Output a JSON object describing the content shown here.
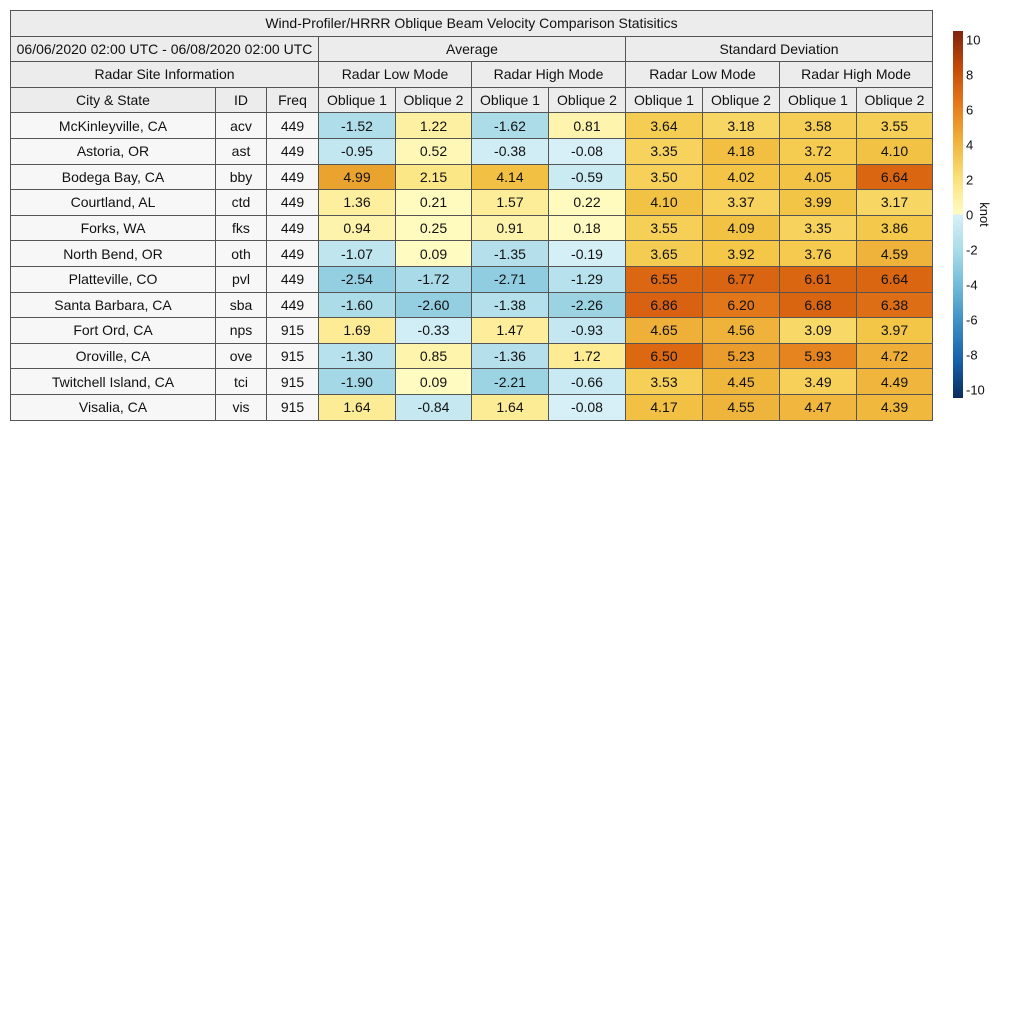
{
  "title": "Wind-Profiler/HRRR Oblique Beam Velocity Comparison Statisitics",
  "date_range": "06/06/2020 02:00 UTC - 06/08/2020 02:00 UTC",
  "groups": {
    "average": "Average",
    "stddev": "Standard Deviation",
    "site_info": "Radar Site Information"
  },
  "modes": [
    "Radar Low Mode",
    "Radar High Mode",
    "Radar Low Mode",
    "Radar High Mode"
  ],
  "columns": {
    "city": "City & State",
    "id": "ID",
    "freq": "Freq",
    "beams": [
      "Oblique 1",
      "Oblique 2",
      "Oblique 1",
      "Oblique 2",
      "Oblique 1",
      "Oblique 2",
      "Oblique 1",
      "Oblique 2"
    ]
  },
  "colorbar": {
    "label": "knot",
    "ticks": [
      "10",
      "8",
      "6",
      "4",
      "2",
      "0",
      "-2",
      "-4",
      "-6",
      "-8",
      "-10"
    ],
    "range": [
      -10,
      10
    ]
  },
  "chart_data": {
    "type": "heatmap",
    "rows": [
      {
        "city": "McKinleyville, CA",
        "id": "acv",
        "freq": "449",
        "values": [
          "-1.52",
          "1.22",
          "-1.62",
          "0.81",
          "3.64",
          "3.18",
          "3.58",
          "3.55"
        ]
      },
      {
        "city": "Astoria, OR",
        "id": "ast",
        "freq": "449",
        "values": [
          "-0.95",
          "0.52",
          "-0.38",
          "-0.08",
          "3.35",
          "4.18",
          "3.72",
          "4.10"
        ]
      },
      {
        "city": "Bodega Bay, CA",
        "id": "bby",
        "freq": "449",
        "values": [
          "4.99",
          "2.15",
          "4.14",
          "-0.59",
          "3.50",
          "4.02",
          "4.05",
          "6.64"
        ]
      },
      {
        "city": "Courtland, AL",
        "id": "ctd",
        "freq": "449",
        "values": [
          "1.36",
          "0.21",
          "1.57",
          "0.22",
          "4.10",
          "3.37",
          "3.99",
          "3.17"
        ]
      },
      {
        "city": "Forks, WA",
        "id": "fks",
        "freq": "449",
        "values": [
          "0.94",
          "0.25",
          "0.91",
          "0.18",
          "3.55",
          "4.09",
          "3.35",
          "3.86"
        ]
      },
      {
        "city": "North Bend, OR",
        "id": "oth",
        "freq": "449",
        "values": [
          "-1.07",
          "0.09",
          "-1.35",
          "-0.19",
          "3.65",
          "3.92",
          "3.76",
          "4.59"
        ]
      },
      {
        "city": "Platteville, CO",
        "id": "pvl",
        "freq": "449",
        "values": [
          "-2.54",
          "-1.72",
          "-2.71",
          "-1.29",
          "6.55",
          "6.77",
          "6.61",
          "6.64"
        ]
      },
      {
        "city": "Santa Barbara, CA",
        "id": "sba",
        "freq": "449",
        "values": [
          "-1.60",
          "-2.60",
          "-1.38",
          "-2.26",
          "6.86",
          "6.20",
          "6.68",
          "6.38"
        ]
      },
      {
        "city": "Fort Ord, CA",
        "id": "nps",
        "freq": "915",
        "values": [
          "1.69",
          "-0.33",
          "1.47",
          "-0.93",
          "4.65",
          "4.56",
          "3.09",
          "3.97"
        ]
      },
      {
        "city": "Oroville, CA",
        "id": "ove",
        "freq": "915",
        "values": [
          "-1.30",
          "0.85",
          "-1.36",
          "1.72",
          "6.50",
          "5.23",
          "5.93",
          "4.72"
        ]
      },
      {
        "city": "Twitchell Island, CA",
        "id": "tci",
        "freq": "915",
        "values": [
          "-1.90",
          "0.09",
          "-2.21",
          "-0.66",
          "3.53",
          "4.45",
          "3.49",
          "4.49"
        ]
      },
      {
        "city": "Visalia, CA",
        "id": "vis",
        "freq": "915",
        "values": [
          "1.64",
          "-0.84",
          "1.64",
          "-0.08",
          "4.17",
          "4.55",
          "4.47",
          "4.39"
        ]
      }
    ]
  }
}
